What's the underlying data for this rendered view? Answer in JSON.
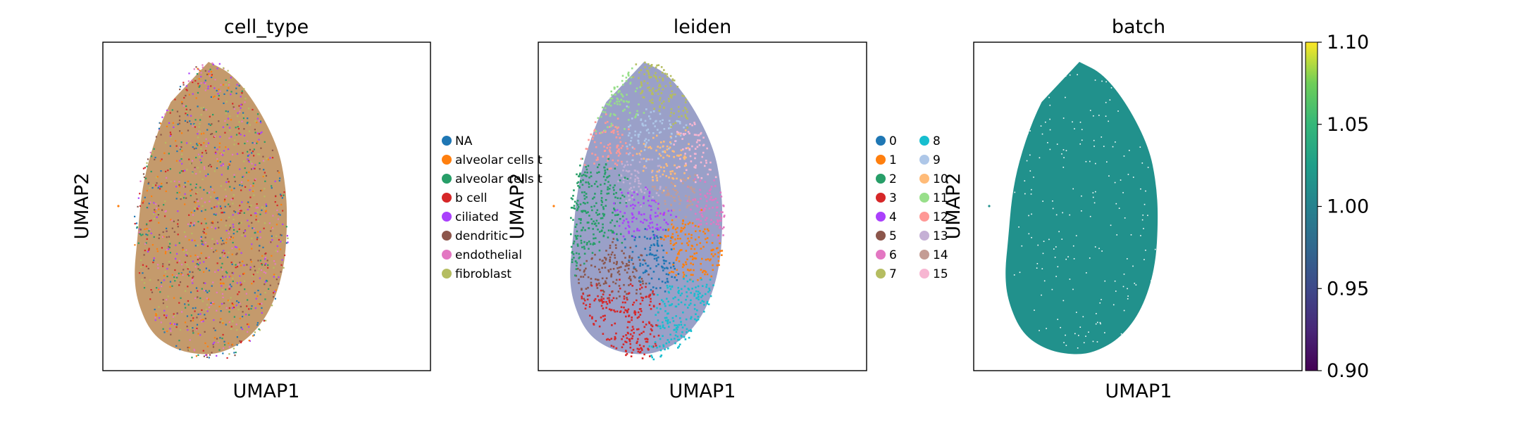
{
  "chart_data": [
    {
      "type": "scatter",
      "title": "cell_type",
      "xlabel": "UMAP1",
      "ylabel": "UMAP2",
      "color_by": "categorical",
      "legend_position": "right",
      "legend": [
        {
          "label": "NA",
          "color": "#1f77b4"
        },
        {
          "label": "alveolar cells t",
          "color": "#ff7f0e"
        },
        {
          "label": "alveolar cells t",
          "color": "#279e68"
        },
        {
          "label": "b cell",
          "color": "#d62728"
        },
        {
          "label": "ciliated",
          "color": "#aa40fc"
        },
        {
          "label": "dendritic",
          "color": "#8c564b"
        },
        {
          "label": "endothelial",
          "color": "#e377c2"
        },
        {
          "label": "fibroblast",
          "color": "#b5bd61"
        }
      ],
      "fill_style": "mixed",
      "base_color": "#c49a6c"
    },
    {
      "type": "scatter",
      "title": "leiden",
      "xlabel": "UMAP1",
      "ylabel": "UMAP2",
      "color_by": "categorical",
      "legend_position": "right",
      "legend_columns": 2,
      "legend": [
        {
          "label": "0",
          "color": "#1f77b4"
        },
        {
          "label": "1",
          "color": "#ff7f0e"
        },
        {
          "label": "2",
          "color": "#279e68"
        },
        {
          "label": "3",
          "color": "#d62728"
        },
        {
          "label": "4",
          "color": "#aa40fc"
        },
        {
          "label": "5",
          "color": "#8c564b"
        },
        {
          "label": "6",
          "color": "#e377c2"
        },
        {
          "label": "7",
          "color": "#b5bd61"
        },
        {
          "label": "8",
          "color": "#17becf"
        },
        {
          "label": "9",
          "color": "#aec7e8"
        },
        {
          "label": "10",
          "color": "#ffbb78"
        },
        {
          "label": "11",
          "color": "#98df8a"
        },
        {
          "label": "12",
          "color": "#ff9896"
        },
        {
          "label": "13",
          "color": "#c5b0d5"
        },
        {
          "label": "14",
          "color": "#c49c94"
        },
        {
          "label": "15",
          "color": "#f7b6d2"
        }
      ],
      "fill_style": "clustered"
    },
    {
      "type": "scatter",
      "title": "batch",
      "xlabel": "UMAP1",
      "ylabel": "UMAP2",
      "color_by": "continuous",
      "colormap": "viridis",
      "fill_color": "#21918c",
      "colorbar": {
        "min": 0.9,
        "max": 1.1,
        "ticks": [
          "0.90",
          "0.95",
          "1.00",
          "1.05",
          "1.10"
        ]
      },
      "fill_style": "solid"
    }
  ]
}
